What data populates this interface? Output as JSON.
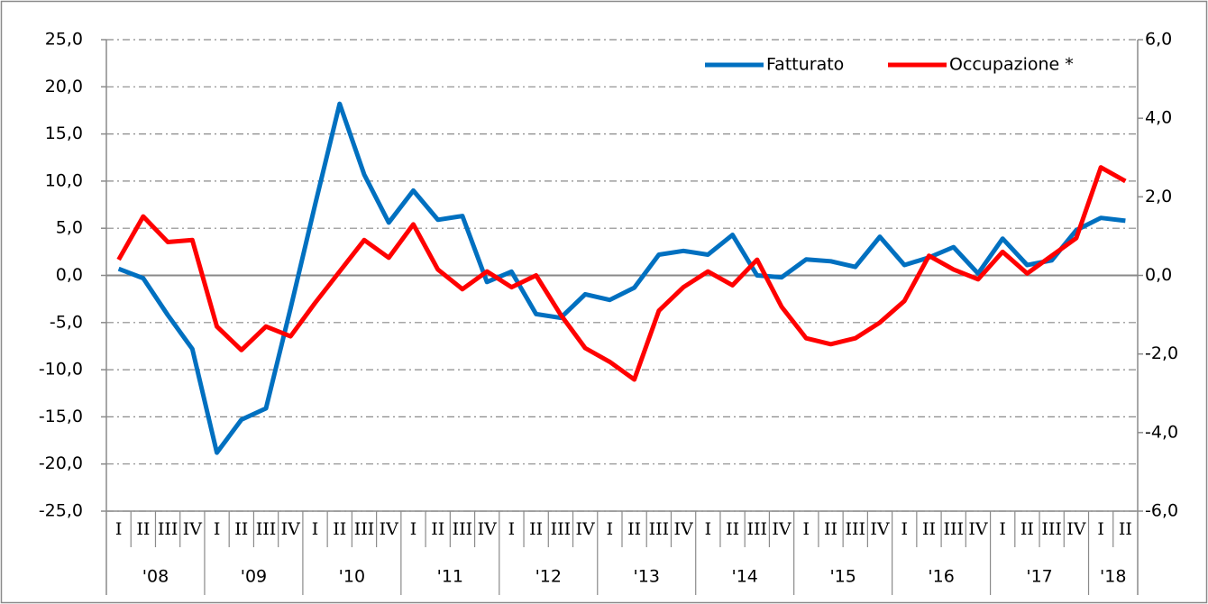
{
  "chart_data": {
    "type": "line",
    "categories": [
      "I",
      "II",
      "III",
      "IV",
      "I",
      "II",
      "III",
      "IV",
      "I",
      "II",
      "III",
      "IV",
      "I",
      "II",
      "III",
      "IV",
      "I",
      "II",
      "III",
      "IV",
      "I",
      "II",
      "III",
      "IV",
      "I",
      "II",
      "III",
      "IV",
      "I",
      "II",
      "III",
      "IV",
      "I",
      "II",
      "III",
      "IV",
      "I",
      "II",
      "III",
      "IV",
      "I",
      "II"
    ],
    "groups": [
      "'08",
      "'09",
      "'10",
      "'11",
      "'12",
      "'13",
      "'14",
      "'15",
      "'16",
      "'17",
      "'18"
    ],
    "series": [
      {
        "name": "Fatturato",
        "color": "#0070c0",
        "values": [
          0.7,
          -0.3,
          -4.2,
          -7.8,
          -18.8,
          -15.3,
          -14.1,
          -3.5,
          7.5,
          18.2,
          10.7,
          5.6,
          9.0,
          5.9,
          6.3,
          -0.7,
          0.4,
          -4.1,
          -4.5,
          -2.0,
          -2.6,
          -1.3,
          2.2,
          2.6,
          2.2,
          4.3,
          0.0,
          -0.2,
          1.7,
          1.5,
          0.9,
          4.1,
          1.1,
          1.9,
          3.0,
          0.2,
          3.9,
          1.1,
          1.6,
          4.8,
          6.1,
          5.8
        ]
      },
      {
        "name": "Occupazione *",
        "color": "#ff0000",
        "axis": "y2",
        "values": [
          0.4,
          1.5,
          0.85,
          0.9,
          -1.3,
          -1.9,
          -1.3,
          -1.55,
          -0.7,
          0.1,
          0.9,
          0.45,
          1.3,
          0.15,
          -0.35,
          0.1,
          -0.3,
          0.0,
          -1.0,
          -1.85,
          -2.2,
          -2.65,
          -0.9,
          -0.3,
          0.1,
          -0.25,
          0.4,
          -0.8,
          -1.6,
          -1.75,
          -1.6,
          -1.2,
          -0.65,
          0.5,
          0.15,
          -0.1,
          0.6,
          0.05,
          0.5,
          0.95,
          2.75,
          2.4
        ]
      }
    ],
    "ylim": [
      -25,
      25
    ],
    "yticks": [
      {
        "value": -25,
        "label": "-25,0"
      },
      {
        "value": -20,
        "label": "-20,0"
      },
      {
        "value": -15,
        "label": "-15,0"
      },
      {
        "value": -10,
        "label": "-10,0"
      },
      {
        "value": -5,
        "label": "-5,0"
      },
      {
        "value": 0,
        "label": "0,0"
      },
      {
        "value": 5,
        "label": "5,0"
      },
      {
        "value": 10,
        "label": "10,0"
      },
      {
        "value": 15,
        "label": "15,0"
      },
      {
        "value": 20,
        "label": "20,0"
      },
      {
        "value": 25,
        "label": "25,0"
      }
    ],
    "y2lim": [
      -6,
      6
    ],
    "y2ticks": [
      {
        "value": -6,
        "label": "-6,0"
      },
      {
        "value": -4,
        "label": "-4,0"
      },
      {
        "value": -2,
        "label": "-2,0"
      },
      {
        "value": 0,
        "label": "0,0"
      },
      {
        "value": 2,
        "label": "2,0"
      },
      {
        "value": 4,
        "label": "4,0"
      },
      {
        "value": 6,
        "label": "6,0"
      }
    ],
    "grid": true,
    "legend": "upper right"
  }
}
